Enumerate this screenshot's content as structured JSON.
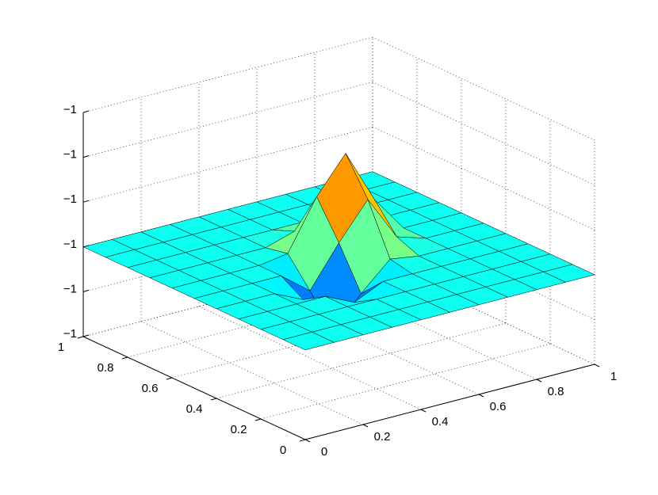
{
  "chart_data": {
    "type": "surface",
    "colormap": "jet",
    "grid": true,
    "x": [
      0,
      0.1,
      0.2,
      0.3,
      0.4,
      0.5,
      0.6,
      0.7,
      0.8,
      0.9,
      1
    ],
    "y": [
      0,
      0.1,
      0.2,
      0.3,
      0.4,
      0.5,
      0.6,
      0.7,
      0.8,
      0.9,
      1
    ],
    "z": [
      [
        -1,
        -1,
        -1,
        -1,
        -1,
        -1,
        -1,
        -1,
        -1,
        -1,
        -1
      ],
      [
        -1,
        -1,
        -1,
        -1,
        -1,
        -1,
        -1,
        -1,
        -1,
        -1,
        -1
      ],
      [
        -1,
        -1,
        -1,
        -1,
        -1,
        -1,
        -1,
        -1,
        -1,
        -1,
        -1
      ],
      [
        -1,
        -1,
        -1,
        -1,
        -1.00003,
        -1,
        -1,
        -1,
        -1,
        -1,
        -1
      ],
      [
        -1,
        -1,
        -1,
        -1.00003,
        -1.00012,
        -1.00005,
        -0.99999,
        -1,
        -1,
        -1,
        -1
      ],
      [
        -1,
        -1,
        -1,
        -1,
        -1.00005,
        -0.99996,
        -0.99988,
        -0.99998,
        -1,
        -1,
        -1
      ],
      [
        -1,
        -1,
        -1,
        -1,
        -0.99999,
        -0.99988,
        -0.9998,
        -0.99992,
        -1,
        -1,
        -1
      ],
      [
        -1,
        -1,
        -1,
        -1,
        -1,
        -0.99998,
        -0.99992,
        -0.99996,
        -1,
        -1,
        -1
      ],
      [
        -1,
        -1,
        -1,
        -1,
        -1,
        -1,
        -1,
        -1,
        -1,
        -1,
        -1
      ],
      [
        -1,
        -1,
        -1,
        -1,
        -1,
        -1,
        -1,
        -1,
        -1,
        -1,
        -1
      ],
      [
        -1,
        -1,
        -1,
        -1,
        -1,
        -1,
        -1,
        -1,
        -1,
        -1,
        -1
      ]
    ],
    "xlim": [
      0,
      1
    ],
    "ylim": [
      0,
      1
    ],
    "zlim": [
      -1.0002,
      -0.9997
    ],
    "xticks": [
      0,
      0.2,
      0.4,
      0.6,
      0.8,
      1
    ],
    "yticks": [
      0,
      0.2,
      0.4,
      0.6,
      0.8,
      1
    ],
    "zticks": [
      {
        "value": -1.0002,
        "label": "−1"
      },
      {
        "value": -1.0001,
        "label": "−1"
      },
      {
        "value": -1,
        "label": "−1"
      },
      {
        "value": -0.9999,
        "label": "−1"
      },
      {
        "value": -0.9998,
        "label": "−1"
      },
      {
        "value": -0.9997,
        "label": "−1"
      }
    ]
  }
}
